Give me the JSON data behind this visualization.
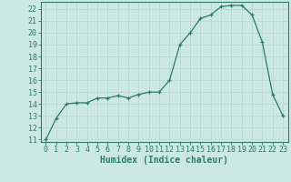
{
  "x": [
    0,
    1,
    2,
    3,
    4,
    5,
    6,
    7,
    8,
    9,
    10,
    11,
    12,
    13,
    14,
    15,
    16,
    17,
    18,
    19,
    20,
    21,
    22,
    23
  ],
  "y": [
    11,
    12.8,
    14,
    14.1,
    14.1,
    14.5,
    14.5,
    14.7,
    14.5,
    14.8,
    15.0,
    15.0,
    16.0,
    19.0,
    20.0,
    21.2,
    21.5,
    22.2,
    22.3,
    22.3,
    21.5,
    19.2,
    14.8,
    13.0
  ],
  "xlabel": "Humidex (Indice chaleur)",
  "xlim": [
    -0.5,
    23.5
  ],
  "ylim": [
    10.8,
    22.6
  ],
  "yticks": [
    11,
    12,
    13,
    14,
    15,
    16,
    17,
    18,
    19,
    20,
    21,
    22
  ],
  "xticks": [
    0,
    1,
    2,
    3,
    4,
    5,
    6,
    7,
    8,
    9,
    10,
    11,
    12,
    13,
    14,
    15,
    16,
    17,
    18,
    19,
    20,
    21,
    22,
    23
  ],
  "line_color": "#2d7a6e",
  "marker": "+",
  "bg_color": "#cce8e4",
  "grid_color": "#b8d8d4",
  "tick_label_fontsize": 6.0,
  "xlabel_fontsize": 7.0
}
